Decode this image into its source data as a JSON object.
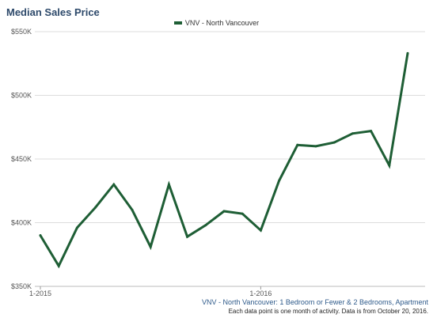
{
  "chart_data": {
    "type": "line",
    "title": "Median Sales Price",
    "xlabel": "",
    "ylabel": "",
    "y_ticks": [
      "$350K",
      "$400K",
      "$450K",
      "$500K",
      "$550K"
    ],
    "y_tick_values": [
      350000,
      400000,
      450000,
      500000,
      550000
    ],
    "x_tick_labels": [
      "1-2015",
      "1-2016"
    ],
    "ylim": [
      350000,
      550000
    ],
    "grid": true,
    "legend": "top-center",
    "x": [
      "1-2015",
      "2-2015",
      "3-2015",
      "4-2015",
      "5-2015",
      "6-2015",
      "7-2015",
      "8-2015",
      "9-2015",
      "10-2015",
      "11-2015",
      "12-2015",
      "1-2016",
      "2-2016",
      "3-2016",
      "4-2016",
      "5-2016",
      "6-2016",
      "7-2016",
      "8-2016",
      "9-2016"
    ],
    "series": [
      {
        "name": "VNV - North Vancouver",
        "color": "#1e5e35",
        "values": [
          390000,
          366000,
          396000,
          412000,
          430000,
          410000,
          381000,
          430000,
          389000,
          398000,
          409000,
          407000,
          394000,
          433000,
          461000,
          460000,
          463000,
          470000,
          472000,
          445000,
          533000
        ]
      }
    ]
  },
  "footer": {
    "series_description": "VNV - North Vancouver: 1 Bedroom or Fewer & 2 Bedrooms, Apartment",
    "note": "Each data point is one month of activity. Data is from October 20, 2016."
  }
}
